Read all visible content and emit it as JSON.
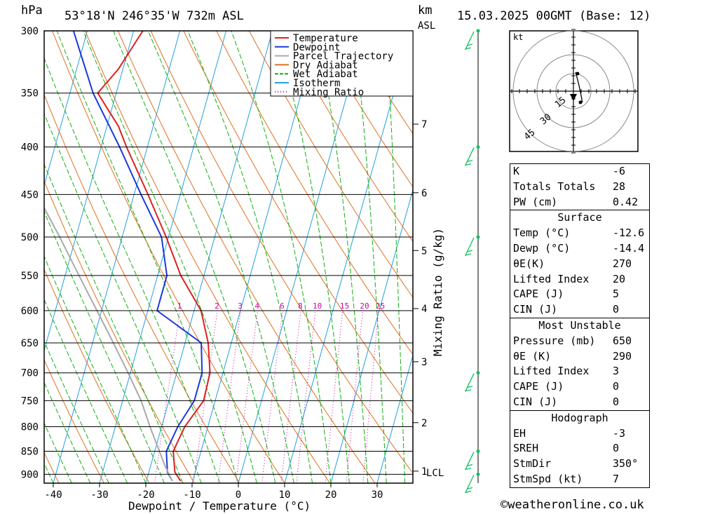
{
  "header": {
    "unit_hpa": "hPa",
    "location": "53°18'N 246°35'W 732m ASL",
    "unit_km": "km",
    "unit_asl": "ASL",
    "datetime": "15.03.2025 00GMT (Base: 12)"
  },
  "chart_data": {
    "type": "skew-t",
    "xlabel": "Dewpoint / Temperature (°C)",
    "ylabel_right": "Mixing Ratio (g/kg)",
    "x_ticks": [
      -40,
      -30,
      -20,
      -10,
      0,
      10,
      20,
      30
    ],
    "pressure_levels": [
      300,
      350,
      400,
      450,
      500,
      550,
      600,
      650,
      700,
      750,
      800,
      850,
      900
    ],
    "pressure_range": [
      300,
      920
    ],
    "km_ticks": [
      {
        "label": "7",
        "p": 378
      },
      {
        "label": "6",
        "p": 448
      },
      {
        "label": "5",
        "p": 517
      },
      {
        "label": "4",
        "p": 597
      },
      {
        "label": "3",
        "p": 681
      },
      {
        "label": "2",
        "p": 792
      },
      {
        "label": "1",
        "p": 893
      }
    ],
    "lcl_label": "LCL",
    "mixing_ratio_labels": [
      "1",
      "2",
      "3",
      "4",
      "6",
      "8",
      "10",
      "15",
      "20",
      "25"
    ],
    "legend": [
      "Temperature",
      "Dewpoint",
      "Parcel Trajectory",
      "Dry Adiabat",
      "Wet Adiabat",
      "Isotherm",
      "Mixing Ratio"
    ],
    "series": [
      {
        "name": "Temperature",
        "color": "#e02020",
        "points": [
          [
            915,
            -12.6
          ],
          [
            895,
            -14.4
          ],
          [
            850,
            -16.0
          ],
          [
            800,
            -15.0
          ],
          [
            750,
            -12.5
          ],
          [
            700,
            -12.8
          ],
          [
            650,
            -15.0
          ],
          [
            600,
            -18.5
          ],
          [
            550,
            -25.0
          ],
          [
            500,
            -30.5
          ],
          [
            450,
            -37.0
          ],
          [
            400,
            -44.5
          ],
          [
            380,
            -47.5
          ],
          [
            350,
            -54.0
          ],
          [
            330,
            -51.0
          ],
          [
            300,
            -48.0
          ]
        ]
      },
      {
        "name": "Dewpoint",
        "color": "#1a3adb",
        "points": [
          [
            915,
            -14.4
          ],
          [
            895,
            -16.0
          ],
          [
            850,
            -17.5
          ],
          [
            800,
            -16.5
          ],
          [
            750,
            -14.5
          ],
          [
            700,
            -14.5
          ],
          [
            650,
            -16.5
          ],
          [
            600,
            -28.0
          ],
          [
            550,
            -28.0
          ],
          [
            500,
            -31.5
          ],
          [
            450,
            -38.5
          ],
          [
            400,
            -46.0
          ],
          [
            350,
            -55.0
          ],
          [
            300,
            -63.0
          ]
        ]
      },
      {
        "name": "Parcel Trajectory",
        "color": "#aaaaaa",
        "points": [
          [
            915,
            -14.4
          ],
          [
            880,
            -17.0
          ],
          [
            800,
            -22.5
          ],
          [
            750,
            -26.0
          ],
          [
            700,
            -30.5
          ],
          [
            650,
            -35.5
          ],
          [
            600,
            -41.0
          ],
          [
            550,
            -47.0
          ],
          [
            500,
            -53.5
          ],
          [
            450,
            -61.0
          ],
          [
            400,
            -69.5
          ],
          [
            350,
            -79.0
          ],
          [
            300,
            -89.0
          ]
        ]
      }
    ],
    "wind_barbs": [
      {
        "p": 300,
        "dir": 300,
        "spd": 25
      },
      {
        "p": 400,
        "dir": 300,
        "spd": 20
      },
      {
        "p": 500,
        "dir": 320,
        "spd": 15
      },
      {
        "p": 700,
        "dir": 260,
        "spd": 10
      },
      {
        "p": 850,
        "dir": 280,
        "spd": 10
      },
      {
        "p": 900,
        "dir": 320,
        "spd": 10
      }
    ],
    "hodograph": {
      "unit": "kt",
      "ring_labels": [
        "15",
        "30",
        "45"
      ],
      "trace": [
        [
          -4,
          17
        ],
        [
          0,
          5
        ],
        [
          2,
          -2
        ],
        [
          4,
          -10
        ]
      ]
    }
  },
  "stats": {
    "top": [
      {
        "label": "K",
        "value": "-6"
      },
      {
        "label": "Totals Totals",
        "value": "28"
      },
      {
        "label": "PW (cm)",
        "value": "0.42"
      }
    ],
    "surface": {
      "title": "Surface",
      "rows": [
        {
          "label": "Temp (°C)",
          "value": "-12.6"
        },
        {
          "label": "Dewp (°C)",
          "value": "-14.4"
        },
        {
          "label": "θE(K)",
          "value": "270"
        },
        {
          "label": "Lifted Index",
          "value": "20"
        },
        {
          "label": "CAPE (J)",
          "value": "5"
        },
        {
          "label": "CIN (J)",
          "value": "0"
        }
      ]
    },
    "most_unstable": {
      "title": "Most Unstable",
      "rows": [
        {
          "label": "Pressure (mb)",
          "value": "650"
        },
        {
          "label": "θE (K)",
          "value": "290"
        },
        {
          "label": "Lifted Index",
          "value": "3"
        },
        {
          "label": "CAPE (J)",
          "value": "0"
        },
        {
          "label": "CIN (J)",
          "value": "0"
        }
      ]
    },
    "hodograph": {
      "title": "Hodograph",
      "rows": [
        {
          "label": "EH",
          "value": "-3"
        },
        {
          "label": "SREH",
          "value": "0"
        },
        {
          "label": "StmDir",
          "value": "350°"
        },
        {
          "label": "StmSpd (kt)",
          "value": "7"
        }
      ]
    }
  },
  "footer": {
    "copyright": "©weatheronline.co.uk"
  },
  "colors": {
    "temperature": "#e02020",
    "dewpoint": "#1a3adb",
    "parcel": "#aaaaaa",
    "dry_adiabat": "#e07020",
    "wet_adiabat": "#10b010",
    "isotherm": "#20a0e0",
    "mixing_ratio": "#cc00aa",
    "wind": "#10c060"
  }
}
